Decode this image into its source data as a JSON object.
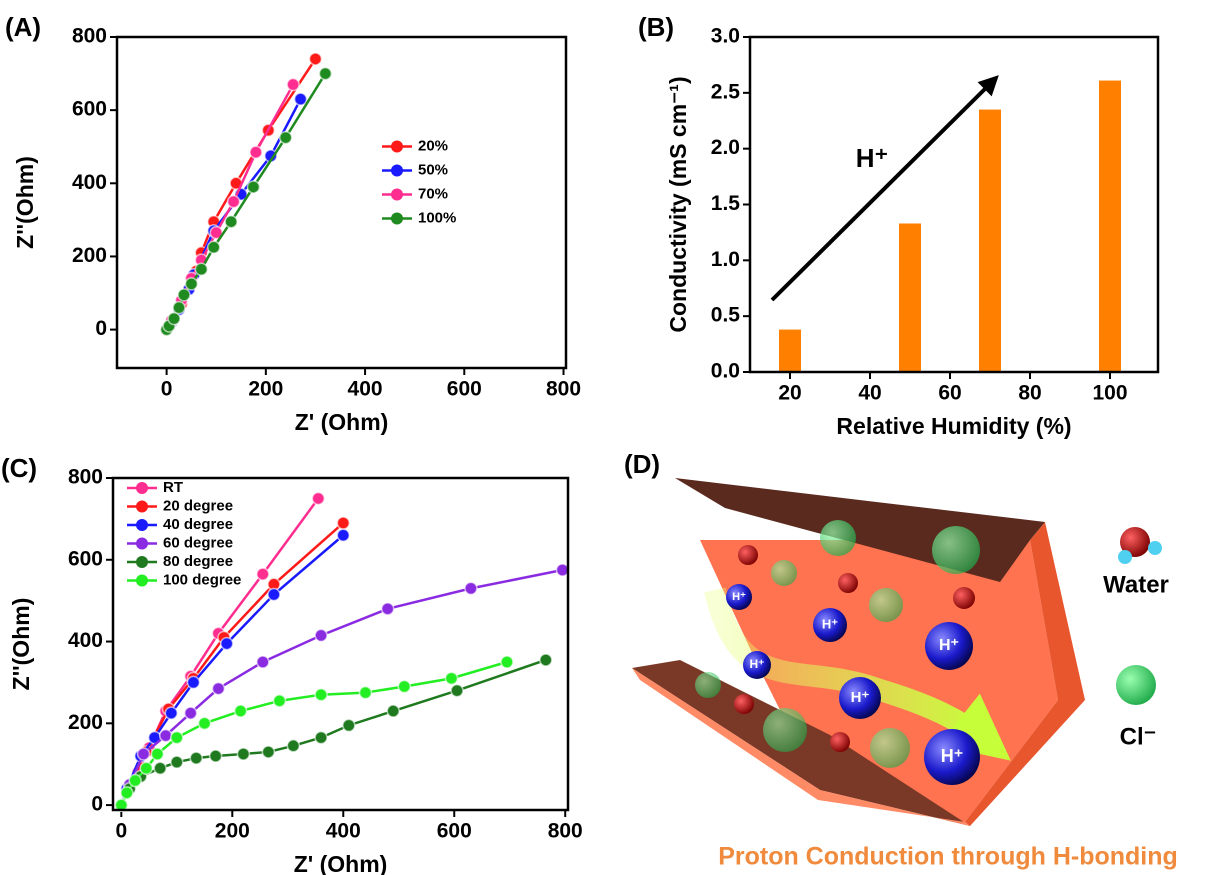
{
  "chart_data": [
    {
      "type": "line",
      "panel_label": "(A)",
      "xlabel": "Z' (Ohm)",
      "ylabel": "Z''(Ohm)",
      "xlim": [
        -100,
        805
      ],
      "ylim": [
        -105,
        800
      ],
      "xticks": [
        0,
        200,
        400,
        600,
        800
      ],
      "yticks": [
        0,
        200,
        400,
        600,
        800
      ],
      "legend": "center-right",
      "series": [
        {
          "name": "20%",
          "color": "#ff1a1a",
          "x": [
            0,
            5,
            15,
            30,
            45,
            60,
            70,
            95,
            140,
            205,
            300
          ],
          "values": [
            0,
            10,
            30,
            70,
            110,
            160,
            210,
            295,
            400,
            545,
            740
          ]
        },
        {
          "name": "50%",
          "color": "#1a1aff",
          "x": [
            0,
            10,
            25,
            45,
            55,
            95,
            150,
            210,
            270
          ],
          "values": [
            0,
            20,
            55,
            110,
            150,
            270,
            370,
            475,
            630
          ]
        },
        {
          "name": "70%",
          "color": "#ff2d8f",
          "x": [
            0,
            10,
            30,
            50,
            70,
            100,
            135,
            180,
            255
          ],
          "values": [
            0,
            25,
            80,
            140,
            190,
            265,
            350,
            485,
            670
          ]
        },
        {
          "name": "100%",
          "color": "#1f8a1f",
          "x": [
            0,
            5,
            15,
            25,
            35,
            50,
            70,
            95,
            130,
            175,
            240,
            320
          ],
          "values": [
            0,
            10,
            30,
            60,
            95,
            125,
            165,
            225,
            295,
            390,
            525,
            700
          ]
        }
      ]
    },
    {
      "type": "bar",
      "panel_label": "(B)",
      "xlabel": "Relative Humidity (%)",
      "ylabel": "Conductivity (mS cm⁻¹)",
      "annotation": "H⁺",
      "color": "#ff8000",
      "x": [
        20,
        50,
        70,
        100
      ],
      "values": [
        0.38,
        1.33,
        2.35,
        2.61
      ],
      "xlim": [
        10,
        112
      ],
      "ylim": [
        0,
        3.0
      ],
      "xticks": [
        20,
        40,
        60,
        80,
        100
      ],
      "yticks": [
        {
          "value": 0,
          "label": "0.0"
        },
        0.5,
        {
          "value": 1,
          "label": "1.0"
        },
        1.5,
        {
          "value": 2,
          "label": "2.0"
        },
        2.5,
        {
          "value": 3,
          "label": "3.0"
        }
      ]
    },
    {
      "type": "line",
      "panel_label": "(C)",
      "xlabel": "Z' (Ohm)",
      "ylabel": "Z''(Ohm)",
      "xlim": [
        -15,
        805
      ],
      "ylim": [
        -12,
        800
      ],
      "xticks": [
        0,
        200,
        400,
        600,
        800
      ],
      "yticks": [
        0,
        200,
        400,
        600,
        800
      ],
      "legend": "upper-left",
      "series": [
        {
          "name": "RT",
          "color": "#ff2d8f",
          "x": [
            0,
            10,
            30,
            50,
            80,
            125,
            175,
            255,
            355
          ],
          "values": [
            0,
            30,
            80,
            140,
            230,
            315,
            420,
            565,
            750
          ]
        },
        {
          "name": "20 degree",
          "color": "#ff1a1a",
          "x": [
            0,
            15,
            45,
            85,
            130,
            185,
            275,
            400
          ],
          "values": [
            0,
            50,
            130,
            235,
            310,
            410,
            540,
            690
          ]
        },
        {
          "name": "40 degree",
          "color": "#1a1aff",
          "x": [
            0,
            10,
            35,
            60,
            90,
            130,
            190,
            275,
            400
          ],
          "values": [
            0,
            40,
            120,
            165,
            225,
            300,
            395,
            515,
            660
          ]
        },
        {
          "name": "60 degree",
          "color": "#8a2be2",
          "x": [
            0,
            15,
            40,
            80,
            125,
            175,
            255,
            360,
            480,
            630,
            795
          ],
          "values": [
            0,
            50,
            125,
            170,
            225,
            285,
            350,
            415,
            480,
            530,
            575
          ]
        },
        {
          "name": "80 degree",
          "color": "#1f7a1f",
          "x": [
            0,
            15,
            35,
            70,
            100,
            135,
            170,
            220,
            265,
            310,
            360,
            410,
            490,
            605,
            765
          ],
          "values": [
            0,
            40,
            70,
            90,
            105,
            115,
            120,
            125,
            130,
            145,
            165,
            195,
            230,
            280,
            355
          ]
        },
        {
          "name": "100 degree",
          "color": "#22ee22",
          "x": [
            0,
            10,
            25,
            45,
            65,
            100,
            150,
            215,
            285,
            360,
            440,
            510,
            595,
            695
          ],
          "values": [
            0,
            30,
            60,
            90,
            125,
            165,
            200,
            230,
            255,
            270,
            275,
            290,
            310,
            350
          ]
        }
      ]
    }
  ],
  "diagram": {
    "panel_label": "(D)",
    "ions": [
      "H⁺",
      "H⁺",
      "H⁺",
      "H⁺",
      "H⁺",
      "H⁺"
    ],
    "water_label": "Water",
    "chloride_label": "Cl⁻",
    "caption": "Proton Conduction through H-bonding"
  }
}
